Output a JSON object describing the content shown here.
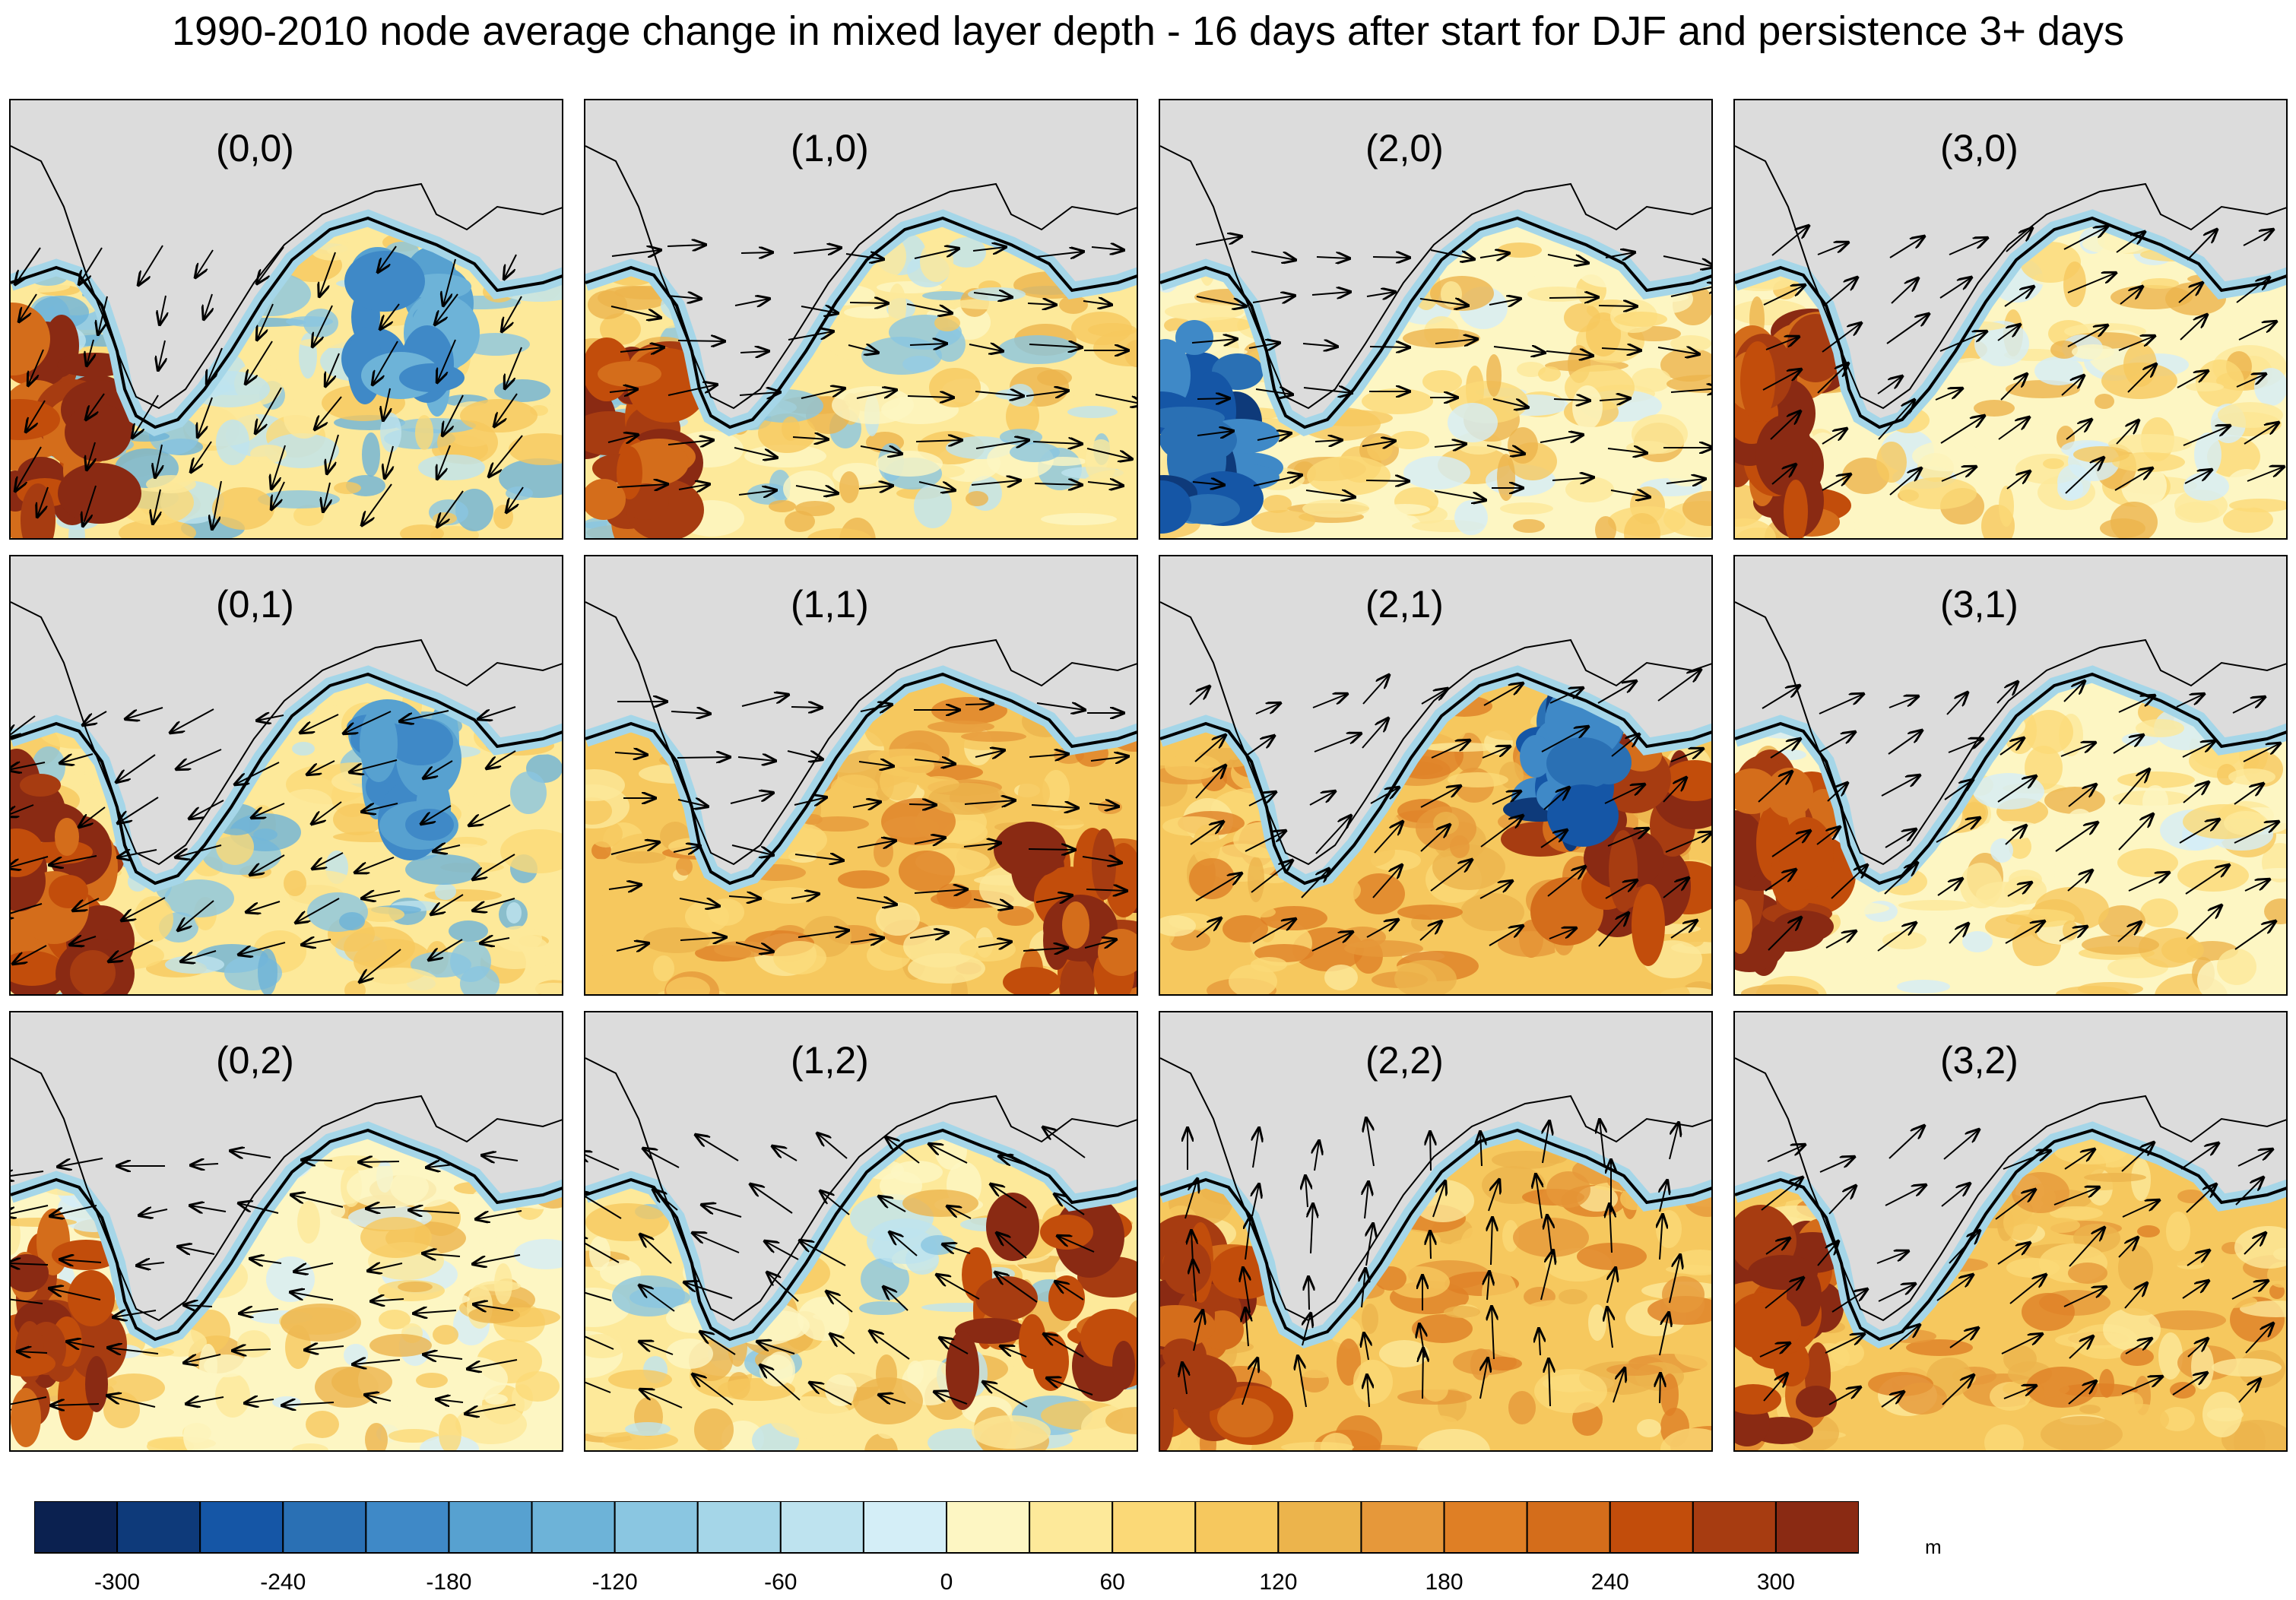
{
  "title": "1990-2010 node average change in mixed layer depth - 16 days after start for DJF and persistence 3+ days",
  "panels": [
    {
      "label": "(0,0)",
      "scheme": "blue-mid",
      "wind": "down-sw",
      "hot": "west"
    },
    {
      "label": "(1,0)",
      "scheme": "mixed",
      "wind": "east",
      "hot": "west"
    },
    {
      "label": "(2,0)",
      "scheme": "yellow",
      "wind": "east",
      "hot": "none",
      "cold": "west"
    },
    {
      "label": "(3,0)",
      "scheme": "yellow",
      "wind": "ne",
      "hot": "west"
    },
    {
      "label": "(0,1)",
      "scheme": "blue-mid",
      "wind": "sw",
      "hot": "west"
    },
    {
      "label": "(1,1)",
      "scheme": "orange",
      "wind": "east",
      "hot": "southeast"
    },
    {
      "label": "(2,1)",
      "scheme": "orange",
      "wind": "ne",
      "hot": "east",
      "cold": "north"
    },
    {
      "label": "(3,1)",
      "scheme": "yellow",
      "wind": "ne",
      "hot": "west"
    },
    {
      "label": "(0,2)",
      "scheme": "yellow",
      "wind": "west",
      "hot": "west"
    },
    {
      "label": "(1,2)",
      "scheme": "mixed",
      "wind": "nw",
      "hot": "east"
    },
    {
      "label": "(2,2)",
      "scheme": "orange",
      "wind": "north",
      "hot": "west"
    },
    {
      "label": "(3,2)",
      "scheme": "orange",
      "wind": "ne",
      "hot": "west"
    }
  ],
  "colorbar": {
    "colors": [
      "#0b2150",
      "#0e3a7a",
      "#1556a6",
      "#2a70b4",
      "#3f89c7",
      "#57a1d0",
      "#6db3d8",
      "#8ac6e1",
      "#a5d6e8",
      "#bee3ef",
      "#d4eef7",
      "#fdf6c3",
      "#fde99a",
      "#fbd977",
      "#f6c85e",
      "#ecb44c",
      "#e6983a",
      "#df7f25",
      "#d46d1b",
      "#c24d0b",
      "#a73c11",
      "#8a2a13"
    ],
    "ticks": [
      "-300",
      "-240",
      "-180",
      "-120",
      "-60",
      "0",
      "60",
      "120",
      "180",
      "240",
      "300"
    ],
    "units": "m"
  }
}
